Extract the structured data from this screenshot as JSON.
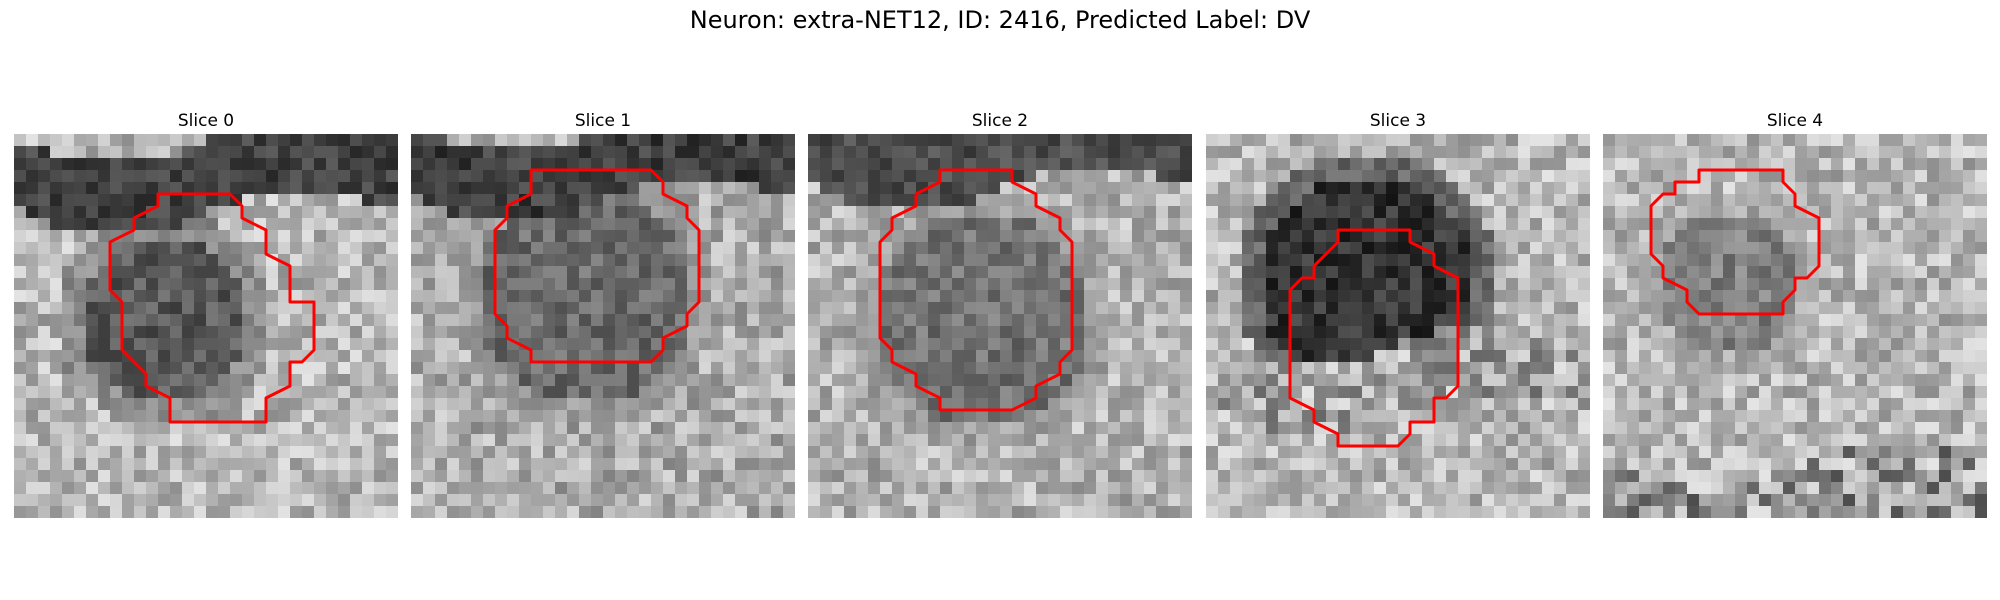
{
  "figure": {
    "title": "Neuron: extra-NET12, ID: 2416, Predicted Label: DV"
  },
  "panels": [
    {
      "title": "Slice 0",
      "outline_color": "#ff0000"
    },
    {
      "title": "Slice 1",
      "outline_color": "#ff0000"
    },
    {
      "title": "Slice 2",
      "outline_color": "#ff0000"
    },
    {
      "title": "Slice 3",
      "outline_color": "#ff0000"
    },
    {
      "title": "Slice 4",
      "outline_color": "#ff0000"
    }
  ]
}
